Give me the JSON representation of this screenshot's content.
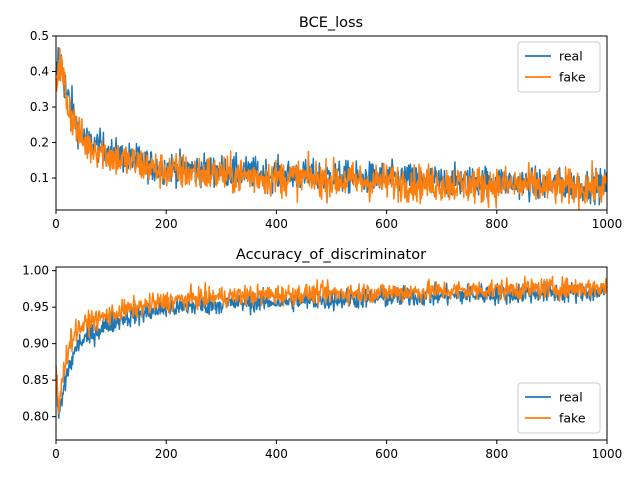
{
  "chart_data": [
    {
      "type": "line",
      "title": "BCE_loss",
      "xlabel": "",
      "ylabel": "",
      "xlim": [
        0,
        1000
      ],
      "ylim": [
        0.01,
        0.5
      ],
      "xticks": [
        0,
        200,
        400,
        600,
        800,
        1000
      ],
      "yticks": [
        0.1,
        0.2,
        0.3,
        0.4,
        0.5
      ],
      "grid": false,
      "legend": "upper right",
      "series": [
        {
          "name": "real",
          "color": "#1f77b4",
          "x": [
            0,
            5,
            10,
            20,
            30,
            40,
            50,
            60,
            80,
            100,
            120,
            150,
            180,
            200,
            250,
            300,
            350,
            400,
            450,
            500,
            550,
            600,
            650,
            700,
            750,
            800,
            850,
            900,
            950,
            1000
          ],
          "y": [
            0.36,
            0.45,
            0.42,
            0.33,
            0.29,
            0.24,
            0.21,
            0.2,
            0.19,
            0.17,
            0.16,
            0.15,
            0.13,
            0.13,
            0.125,
            0.12,
            0.115,
            0.11,
            0.105,
            0.105,
            0.1,
            0.1,
            0.095,
            0.09,
            0.09,
            0.09,
            0.085,
            0.08,
            0.08,
            0.08
          ],
          "noise": 0.022
        },
        {
          "name": "fake",
          "color": "#ff7f0e",
          "x": [
            0,
            5,
            10,
            20,
            30,
            40,
            50,
            60,
            80,
            100,
            120,
            150,
            180,
            200,
            250,
            300,
            350,
            400,
            450,
            500,
            550,
            600,
            650,
            700,
            750,
            800,
            850,
            900,
            950,
            1000
          ],
          "y": [
            0.36,
            0.43,
            0.4,
            0.32,
            0.27,
            0.23,
            0.2,
            0.19,
            0.18,
            0.16,
            0.15,
            0.14,
            0.125,
            0.12,
            0.115,
            0.11,
            0.105,
            0.1,
            0.1,
            0.095,
            0.09,
            0.09,
            0.085,
            0.085,
            0.08,
            0.08,
            0.08,
            0.075,
            0.075,
            0.075
          ],
          "noise": 0.026
        }
      ]
    },
    {
      "type": "line",
      "title": "Accuracy_of_discriminator",
      "xlabel": "",
      "ylabel": "",
      "xlim": [
        0,
        1000
      ],
      "ylim": [
        0.768,
        1.005
      ],
      "xticks": [
        0,
        200,
        400,
        600,
        800,
        1000
      ],
      "yticks": [
        0.8,
        0.85,
        0.9,
        0.95,
        1.0
      ],
      "grid": false,
      "legend": "lower right",
      "series": [
        {
          "name": "real",
          "color": "#1f77b4",
          "x": [
            0,
            5,
            10,
            20,
            30,
            40,
            50,
            60,
            80,
            100,
            120,
            150,
            180,
            200,
            250,
            300,
            350,
            400,
            450,
            500,
            550,
            600,
            650,
            700,
            750,
            800,
            850,
            900,
            950,
            1000
          ],
          "y": [
            0.86,
            0.8,
            0.82,
            0.86,
            0.88,
            0.9,
            0.905,
            0.91,
            0.92,
            0.928,
            0.935,
            0.94,
            0.945,
            0.948,
            0.952,
            0.955,
            0.957,
            0.958,
            0.959,
            0.96,
            0.962,
            0.963,
            0.965,
            0.966,
            0.967,
            0.968,
            0.969,
            0.97,
            0.97,
            0.971
          ],
          "noise": 0.007
        },
        {
          "name": "fake",
          "color": "#ff7f0e",
          "x": [
            0,
            5,
            10,
            20,
            30,
            40,
            50,
            60,
            80,
            100,
            120,
            150,
            180,
            200,
            250,
            300,
            350,
            400,
            450,
            500,
            550,
            600,
            650,
            700,
            750,
            800,
            850,
            900,
            950,
            1000
          ],
          "y": [
            0.87,
            0.81,
            0.84,
            0.89,
            0.91,
            0.92,
            0.925,
            0.93,
            0.935,
            0.94,
            0.945,
            0.95,
            0.955,
            0.958,
            0.962,
            0.964,
            0.966,
            0.967,
            0.968,
            0.969,
            0.97,
            0.97,
            0.971,
            0.972,
            0.973,
            0.974,
            0.975,
            0.976,
            0.976,
            0.977
          ],
          "noise": 0.007
        }
      ]
    }
  ]
}
